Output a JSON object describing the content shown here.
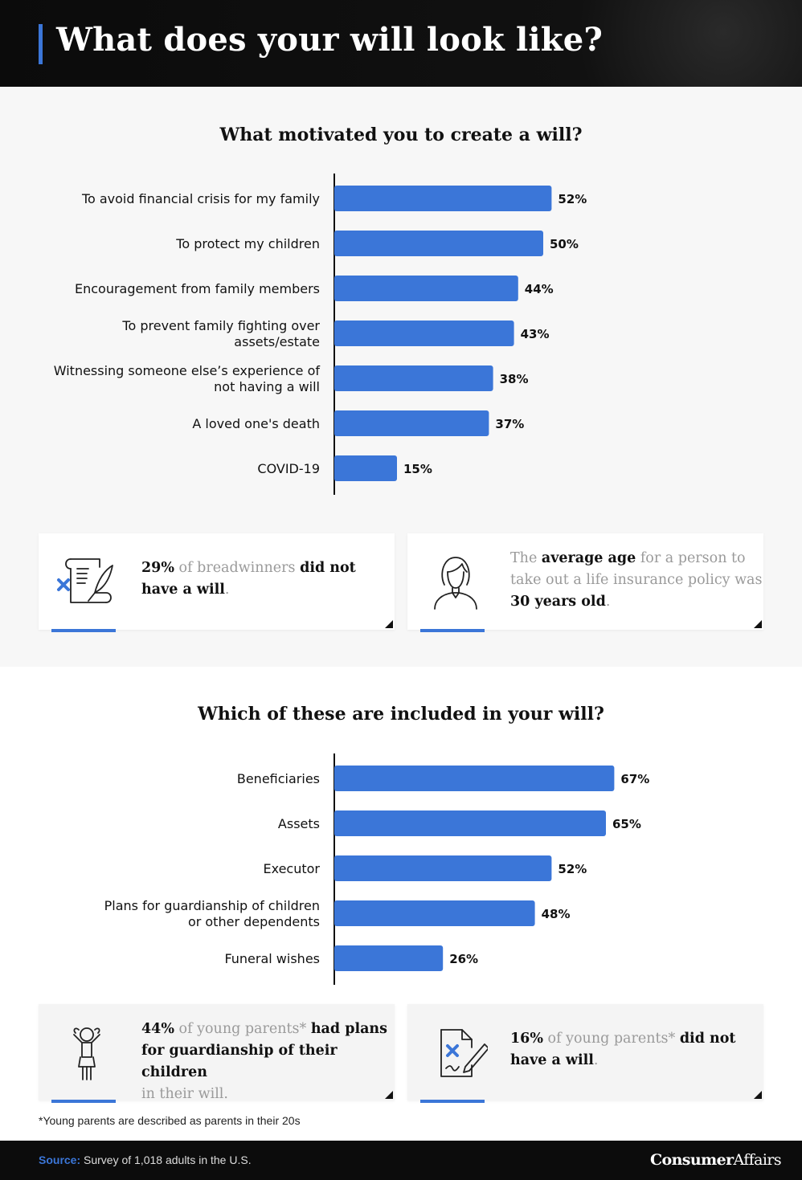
{
  "header": {
    "title": "What does your will look like?"
  },
  "chart_data": [
    {
      "type": "bar",
      "orientation": "horizontal",
      "title": "What motivated you to create a will?",
      "categories": [
        [
          "To avoid financial crisis for my family"
        ],
        [
          "To protect my children"
        ],
        [
          "Encouragement from family members"
        ],
        [
          "To prevent family fighting over",
          "assets/estate"
        ],
        [
          "Witnessing someone else’s experience of",
          "not having a will"
        ],
        [
          "A loved one's death"
        ],
        [
          "COVID-19"
        ]
      ],
      "values": [
        52,
        50,
        44,
        43,
        38,
        37,
        15
      ],
      "value_labels": [
        "52%",
        "50%",
        "44%",
        "43%",
        "38%",
        "37%",
        "15%"
      ],
      "unit": "%",
      "bar_color": "#3b76d8"
    },
    {
      "type": "bar",
      "orientation": "horizontal",
      "title": "Which of these are included in your will?",
      "categories": [
        [
          "Beneficiaries"
        ],
        [
          "Assets"
        ],
        [
          "Executor"
        ],
        [
          "Plans for guardianship of children",
          "or other dependents"
        ],
        [
          "Funeral wishes"
        ]
      ],
      "values": [
        67,
        65,
        52,
        48,
        26
      ],
      "value_labels": [
        "67%",
        "65%",
        "52%",
        "48%",
        "26%"
      ],
      "unit": "%",
      "bar_color": "#3b76d8"
    }
  ],
  "cards": {
    "breadwinners": {
      "icon": "will-document-quill-icon",
      "pct": "29%",
      "t1": " of breadwinners ",
      "b1": "did not",
      "b2": "have a will",
      "end": "."
    },
    "insurance_age": {
      "icon": "woman-avatar-icon",
      "t1": "The ",
      "b1": "average age",
      "t2": " for a person to",
      "t3": "take out a life insurance policy was",
      "b2": "30 years old",
      "end": "."
    },
    "guardianship": {
      "icon": "child-icon",
      "pct": "44%",
      "t1": " of young parents* ",
      "b1": "had plans",
      "b2": "for guardianship of their children",
      "t2": "in their will."
    },
    "no_will_parents": {
      "icon": "document-pen-x-icon",
      "pct": "16%",
      "t1": " of young parents* ",
      "b1": "did not",
      "b2": "have a will",
      "end": "."
    }
  },
  "footnote": "*Young parents are described as parents in their 20s",
  "footer": {
    "source_label": "Source:",
    "source_text": " Survey of 1,018 adults in the U.S.",
    "brand_bold": "Consumer",
    "brand_regular": "Affairs"
  },
  "colors": {
    "accent": "#3b76d8",
    "header_bg": "#0b0b0b",
    "text_muted": "#9a9a9a"
  }
}
